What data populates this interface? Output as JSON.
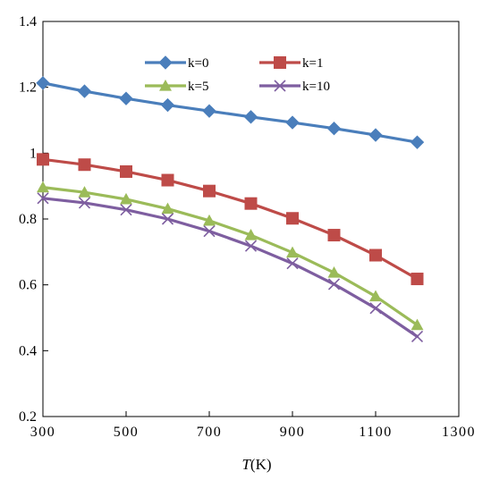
{
  "chart_data": {
    "type": "line",
    "xlabel_symbol": "T",
    "xlabel_unit": "(K)",
    "ylabel": "",
    "xlim": [
      300,
      1300
    ],
    "ylim": [
      0.2,
      1.4
    ],
    "xticks": [
      300,
      500,
      700,
      900,
      1100,
      1300
    ],
    "xtick_labels": [
      "300",
      "500",
      "700",
      "900",
      "1100",
      "1300"
    ],
    "yticks": [
      0.2,
      0.4,
      0.6,
      0.8,
      1.0,
      1.2,
      1.4
    ],
    "ytick_labels": [
      "0.2",
      "0.4",
      "0.6",
      "0.8",
      "1",
      "1.2",
      "1.4"
    ],
    "grid": false,
    "legend_position": "top-center",
    "x": [
      300,
      400,
      500,
      600,
      700,
      800,
      900,
      1000,
      1100,
      1200
    ],
    "series": [
      {
        "name": "k=0",
        "color": "#4a7ebb",
        "marker": "diamond",
        "values": [
          1.213,
          1.188,
          1.166,
          1.146,
          1.128,
          1.11,
          1.093,
          1.075,
          1.055,
          1.033
        ]
      },
      {
        "name": "k=1",
        "color": "#be4b48",
        "marker": "square",
        "values": [
          0.981,
          0.965,
          0.944,
          0.918,
          0.885,
          0.847,
          0.802,
          0.751,
          0.69,
          0.618
        ]
      },
      {
        "name": "k=5",
        "color": "#9bbb59",
        "marker": "triangle",
        "values": [
          0.896,
          0.881,
          0.86,
          0.831,
          0.795,
          0.751,
          0.698,
          0.637,
          0.565,
          0.478
        ]
      },
      {
        "name": "k=10",
        "color": "#7e5ea0",
        "marker": "x",
        "values": [
          0.863,
          0.849,
          0.828,
          0.8,
          0.763,
          0.718,
          0.665,
          0.602,
          0.529,
          0.443
        ]
      }
    ]
  }
}
